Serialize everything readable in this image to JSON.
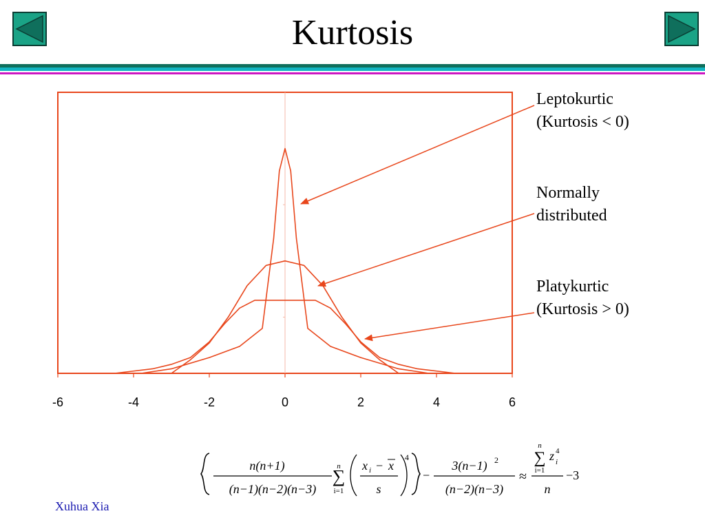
{
  "title": "Kurtosis",
  "footer": "Xuhua Xia",
  "nav": {
    "prev_icon": "left-triangle-icon",
    "next_icon": "right-triangle-icon",
    "button_fill": "#1aa386",
    "icon_fill": "#0f6f5c"
  },
  "annotations": {
    "leptokurtic": {
      "line1": "Leptokurtic",
      "line2": "(Kurtosis < 0)"
    },
    "normal": {
      "line1": "Normally",
      "line2": "distributed"
    },
    "platykurtic": {
      "line1": "Platykurtic",
      "line2": "(Kurtosis > 0)"
    }
  },
  "colors": {
    "curve": "#e8461b",
    "frame": "#e8461b",
    "arrow": "#e8461b",
    "centerline": "#f6b8a8"
  },
  "chart_data": {
    "type": "line",
    "xlim": [
      -6,
      6
    ],
    "ylim": [
      0,
      2.5
    ],
    "xticks": [
      "-6",
      "-4",
      "-2",
      "0",
      "2",
      "4",
      "6"
    ],
    "xtick_values": [
      -6,
      -4,
      -2,
      0,
      2,
      4,
      6
    ],
    "grid": false,
    "series": [
      {
        "x": [
          -3.8,
          -3.0,
          -2.0,
          -1.2,
          -0.6,
          -0.3,
          -0.15,
          0,
          0.15,
          0.3,
          0.6,
          1.2,
          2.0,
          3.0,
          3.8
        ],
        "y": [
          0.0,
          0.04,
          0.14,
          0.24,
          0.4,
          1.2,
          1.8,
          2.0,
          1.8,
          1.2,
          0.4,
          0.24,
          0.14,
          0.04,
          0.0
        ]
      },
      {
        "x": [
          -3.0,
          -2.5,
          -2.0,
          -1.5,
          -1.0,
          -0.5,
          0,
          0.5,
          1.0,
          1.5,
          2.0,
          2.5,
          3.0
        ],
        "y": [
          0.0,
          0.12,
          0.27,
          0.5,
          0.78,
          0.96,
          1.0,
          0.96,
          0.78,
          0.5,
          0.27,
          0.12,
          0.0
        ]
      },
      {
        "x": [
          -4.5,
          -3.5,
          -3.0,
          -2.5,
          -2.0,
          -1.6,
          -1.2,
          -0.8,
          0,
          0.8,
          1.2,
          1.6,
          2.0,
          2.5,
          3.0,
          3.5,
          4.5
        ],
        "y": [
          0.0,
          0.04,
          0.08,
          0.14,
          0.28,
          0.44,
          0.58,
          0.65,
          0.65,
          0.65,
          0.58,
          0.44,
          0.28,
          0.14,
          0.08,
          0.04,
          0.0
        ]
      }
    ]
  },
  "formula": {
    "n": "n",
    "n_plus_1": "n(n+1)",
    "denominator1": "(n−1)(n−2)(n−3)",
    "sigma": "∑",
    "sum_upper": "n",
    "sum_lower": "i=1",
    "xi_minus_xbar": "x",
    "sub_i": "i",
    "minus": "−",
    "xbar": "x",
    "s": "s",
    "power4": "4",
    "numerator2": "3(n−1)",
    "power2": "2",
    "denominator2": "(n−2)(n−3)",
    "approx": "≈",
    "z": "z",
    "minus3": "−3"
  }
}
